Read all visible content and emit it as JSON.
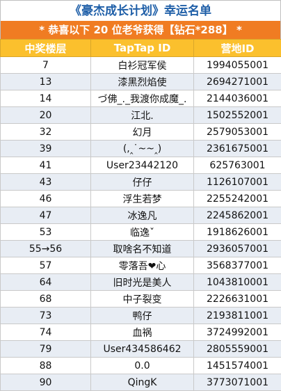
{
  "title": "《豪杰成长计划》幸运名单",
  "subtitle": "* 恭喜以下 20 位老爷获得【钻石*288】 *",
  "headers": [
    "中奖楼层",
    "TapTap ID",
    "营地ID"
  ],
  "rows": [
    [
      "7",
      "白衫冠军侯",
      "1994055001"
    ],
    [
      "13",
      "漆黑烈焰使",
      "2694271001"
    ],
    [
      "14",
      "づ佛_._我渡你成魔_.",
      "2144036001"
    ],
    [
      "20",
      "江北.",
      "1502552001"
    ],
    [
      "32",
      "幻月",
      "2579053001"
    ],
    [
      "39",
      "(,‸˙~~‸)",
      "2361675001"
    ],
    [
      "41",
      "User23442120",
      "625763001"
    ],
    [
      "43",
      "仔仔",
      "1126107001"
    ],
    [
      "46",
      "浮生若梦",
      "2255242001"
    ],
    [
      "47",
      "冰逸凡",
      "2245862001"
    ],
    [
      "53",
      "临逸ˇ",
      "1918626001"
    ],
    [
      "55→56",
      "取啥名不知道",
      "2936057001"
    ],
    [
      "57",
      "零落吾❤心",
      "3568377001"
    ],
    [
      "64",
      "旧时光是美人",
      "1043810001"
    ],
    [
      "68",
      "中子裂变",
      "2226631001"
    ],
    [
      "73",
      "鸭仔",
      "2193811001"
    ],
    [
      "74",
      "血祸",
      "3724992001"
    ],
    [
      "79",
      "User434586462",
      "2805559001"
    ],
    [
      "88",
      "0.0",
      "1451574001"
    ],
    [
      "90",
      "QingK",
      "3773071001"
    ]
  ]
}
